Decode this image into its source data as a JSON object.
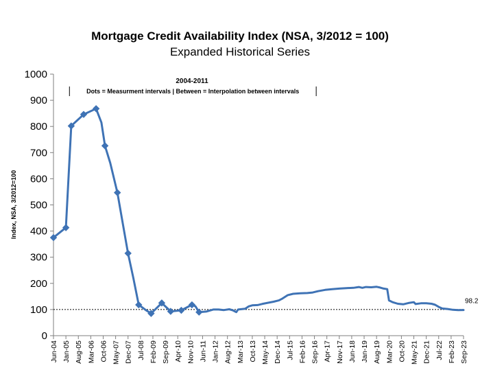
{
  "chart_data": {
    "type": "line",
    "title": "Mortgage Credit Availability Index (NSA, 3/2012 = 100)",
    "subtitle": "Expanded Historical Series",
    "ylabel": "Index, NSA, 3/2012=100",
    "xlabel": "",
    "ylim": [
      0,
      1000
    ],
    "yticks": [
      0,
      100,
      200,
      300,
      400,
      500,
      600,
      700,
      800,
      900,
      1000
    ],
    "xlim": [
      "2004-06",
      "2023-09"
    ],
    "x_ticks": [
      "Jun-04",
      "Jan-05",
      "Aug-05",
      "Mar-06",
      "Oct-06",
      "May-07",
      "Dec-07",
      "Jul-08",
      "Feb-09",
      "Sep-09",
      "Apr-10",
      "Nov-10",
      "Jun-11",
      "Jan-12",
      "Aug-12",
      "Mar-13",
      "Oct-13",
      "May-14",
      "Dec-14",
      "Jul-15",
      "Feb-16",
      "Sep-16",
      "Apr-17",
      "Nov-17",
      "Jun-18",
      "Jan-19",
      "Aug-19",
      "Mar-20",
      "Oct-20",
      "May-21",
      "Dec-21",
      "Jul-22",
      "Feb-23",
      "Sep-23"
    ],
    "reference_line": {
      "y": 100,
      "style": "dotted"
    },
    "end_label": "98.2",
    "annotation": {
      "title": "2004-2011",
      "text": "Dots = Measurment intervals  |  Between = Interpolation between intervals",
      "x_start": "2005-03",
      "x_end": "2016-10"
    },
    "series": [
      {
        "color": "#3f73b5",
        "markers": [
          [
            "2004-06",
            375
          ],
          [
            "2005-01",
            413
          ],
          [
            "2005-04",
            802
          ],
          [
            "2005-11",
            846
          ],
          [
            "2006-06",
            868
          ],
          [
            "2006-11",
            726
          ],
          [
            "2007-06",
            547
          ],
          [
            "2007-12",
            315
          ],
          [
            "2008-06",
            118
          ],
          [
            "2009-01",
            85
          ],
          [
            "2009-07",
            125
          ],
          [
            "2009-12",
            93
          ],
          [
            "2010-06",
            97
          ],
          [
            "2010-12",
            118
          ],
          [
            "2011-04",
            90
          ]
        ],
        "points": [
          [
            "2004-06",
            375
          ],
          [
            "2005-01",
            413
          ],
          [
            "2005-04",
            802
          ],
          [
            "2005-11",
            846
          ],
          [
            "2006-06",
            868
          ],
          [
            "2006-09",
            815
          ],
          [
            "2006-11",
            726
          ],
          [
            "2007-02",
            660
          ],
          [
            "2007-06",
            547
          ],
          [
            "2007-09",
            430
          ],
          [
            "2007-12",
            315
          ],
          [
            "2008-03",
            220
          ],
          [
            "2008-06",
            118
          ],
          [
            "2008-10",
            98
          ],
          [
            "2009-01",
            85
          ],
          [
            "2009-07",
            125
          ],
          [
            "2009-12",
            93
          ],
          [
            "2010-06",
            97
          ],
          [
            "2010-12",
            118
          ],
          [
            "2011-02",
            112
          ],
          [
            "2011-04",
            90
          ],
          [
            "2011-08",
            92
          ],
          [
            "2011-12",
            100
          ],
          [
            "2012-03",
            100
          ],
          [
            "2012-06",
            98
          ],
          [
            "2012-09",
            101
          ],
          [
            "2012-11",
            97
          ],
          [
            "2013-01",
            90
          ],
          [
            "2013-02",
            100
          ],
          [
            "2013-06",
            103
          ],
          [
            "2013-08",
            112
          ],
          [
            "2013-10",
            116
          ],
          [
            "2014-01",
            117
          ],
          [
            "2014-04",
            122
          ],
          [
            "2014-07",
            126
          ],
          [
            "2014-10",
            130
          ],
          [
            "2015-01",
            135
          ],
          [
            "2015-03",
            142
          ],
          [
            "2015-06",
            155
          ],
          [
            "2015-09",
            160
          ],
          [
            "2016-01",
            162
          ],
          [
            "2016-05",
            163
          ],
          [
            "2016-08",
            165
          ],
          [
            "2016-11",
            170
          ],
          [
            "2017-03",
            175
          ],
          [
            "2017-07",
            178
          ],
          [
            "2017-11",
            180
          ],
          [
            "2018-03",
            182
          ],
          [
            "2018-07",
            183
          ],
          [
            "2018-10",
            186
          ],
          [
            "2018-12",
            183
          ],
          [
            "2019-02",
            186
          ],
          [
            "2019-05",
            185
          ],
          [
            "2019-08",
            187
          ],
          [
            "2019-10",
            184
          ],
          [
            "2019-12",
            180
          ],
          [
            "2020-02",
            178
          ],
          [
            "2020-03",
            135
          ],
          [
            "2020-05",
            128
          ],
          [
            "2020-08",
            122
          ],
          [
            "2020-11",
            120
          ],
          [
            "2021-02",
            125
          ],
          [
            "2021-05",
            128
          ],
          [
            "2021-06",
            121
          ],
          [
            "2021-09",
            124
          ],
          [
            "2021-12",
            124
          ],
          [
            "2022-03",
            122
          ],
          [
            "2022-05",
            118
          ],
          [
            "2022-07",
            110
          ],
          [
            "2022-09",
            104
          ],
          [
            "2022-12",
            102
          ],
          [
            "2023-03",
            99
          ],
          [
            "2023-06",
            98
          ],
          [
            "2023-09",
            98.2
          ]
        ]
      }
    ]
  }
}
